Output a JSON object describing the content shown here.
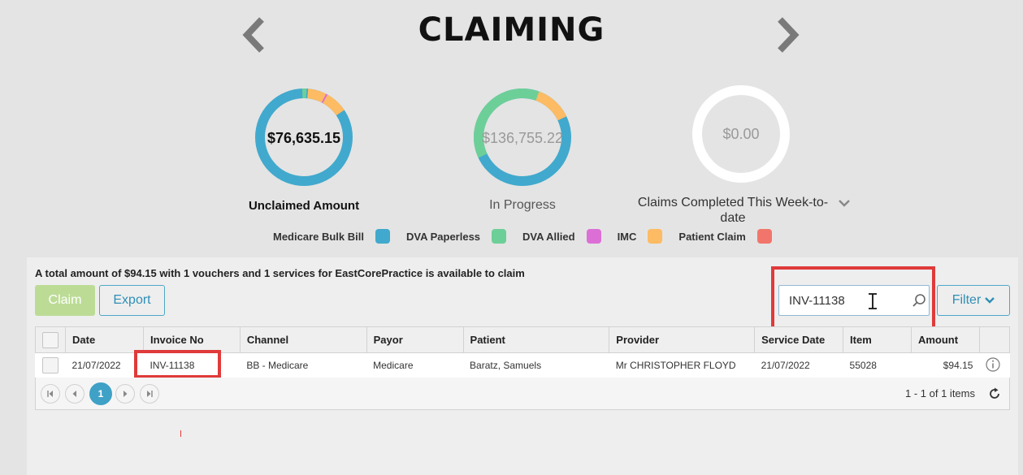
{
  "header": {
    "title": "CLAIMING"
  },
  "summary_cards": [
    {
      "value": "$76,635.15",
      "label": "Unclaimed Amount"
    },
    {
      "value": "$136,755.22",
      "label": "In Progress"
    },
    {
      "value": "$0.00",
      "label": "Claims Completed This Week-to-date"
    }
  ],
  "legend": [
    {
      "label": "Medicare Bulk Bill",
      "color": "#41a9cd"
    },
    {
      "label": "DVA Paperless",
      "color": "#6dcf98"
    },
    {
      "label": "DVA Allied",
      "color": "#dc6fd6"
    },
    {
      "label": "IMC",
      "color": "#fdbb63"
    },
    {
      "label": "Patient Claim",
      "color": "#f2756b"
    }
  ],
  "summary_text": "A total amount of $94.15 with 1 vouchers and 1 services for EastCorePractice is available to claim",
  "toolbar": {
    "claim_label": "Claim",
    "export_label": "Export",
    "search_value": "INV-11138",
    "filter_label": "Filter"
  },
  "table": {
    "columns": [
      "Date",
      "Invoice No",
      "Channel",
      "Payor",
      "Patient",
      "Provider",
      "Service Date",
      "Item",
      "Amount"
    ],
    "rows": [
      {
        "date": "21/07/2022",
        "invoice_no": "INV-11138",
        "channel": "BB - Medicare",
        "payor": "Medicare",
        "patient": "Baratz, Samuels",
        "provider": "Mr CHRISTOPHER FLOYD",
        "service_date": "21/07/2022",
        "item": "55028",
        "amount": "$94.15"
      }
    ]
  },
  "pager": {
    "current_page": "1",
    "info": "1 - 1 of 1 items"
  }
}
